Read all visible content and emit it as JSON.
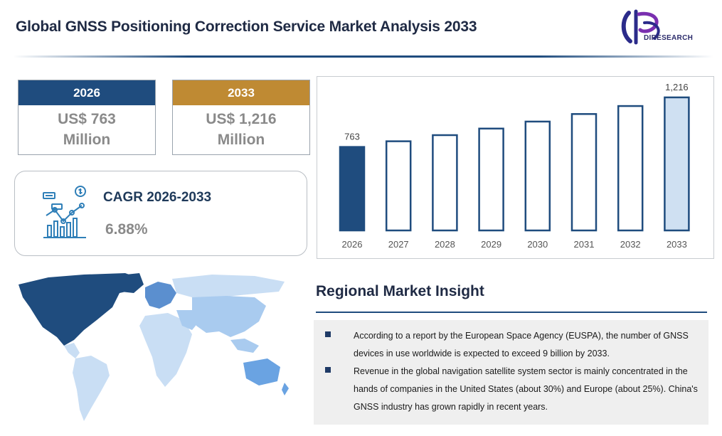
{
  "header": {
    "title": "Global GNSS Positioning Correction Service Market Analysis 2033"
  },
  "logo": {
    "text": "DIRESEARCH"
  },
  "stats": [
    {
      "year": "2026",
      "value_line1": "US$ 763",
      "value_line2": "Million",
      "color": "#1f4c7e"
    },
    {
      "year": "2033",
      "value_line1": "US$ 1,216",
      "value_line2": "Million",
      "color": "#bf8a33"
    }
  ],
  "cagr": {
    "label": "CAGR 2026-2033",
    "value": "6.88%"
  },
  "chart_data": {
    "type": "bar",
    "categories": [
      "2026",
      "2027",
      "2028",
      "2029",
      "2030",
      "2031",
      "2032",
      "2033"
    ],
    "values": [
      763,
      815,
      871,
      931,
      995,
      1064,
      1137,
      1216
    ],
    "data_labels": [
      "763",
      "",
      "",
      "",
      "",
      "",
      "",
      "1,216"
    ],
    "title": "",
    "xlabel": "",
    "ylabel": "",
    "ylim": [
      0,
      1300
    ],
    "grid": false,
    "colors": {
      "first": "#1f4c7e",
      "middle": "#ffffff",
      "last": "#cfe0f2",
      "stroke": "#1f4c7e"
    }
  },
  "insight": {
    "title": "Regional Market Insight",
    "bullets": [
      "According to a report by the European Space Agency (EUSPA), the number of GNSS devices in use worldwide is expected to exceed 9 billion by 2033.",
      "Revenue in the global navigation satellite system sector is mainly concentrated in the hands of companies in the United States (about 30%) and Europe (about 25%). China's GNSS industry has grown rapidly in recent years."
    ]
  },
  "map": {
    "colors": {
      "north_america": "#1f4c7e",
      "europe": "#5b8fcf",
      "asia": "#a9cbef",
      "south_america": "#c9def4",
      "africa": "#c9def4",
      "oceania": "#6aa3e2",
      "russia": "#c9def4"
    }
  }
}
